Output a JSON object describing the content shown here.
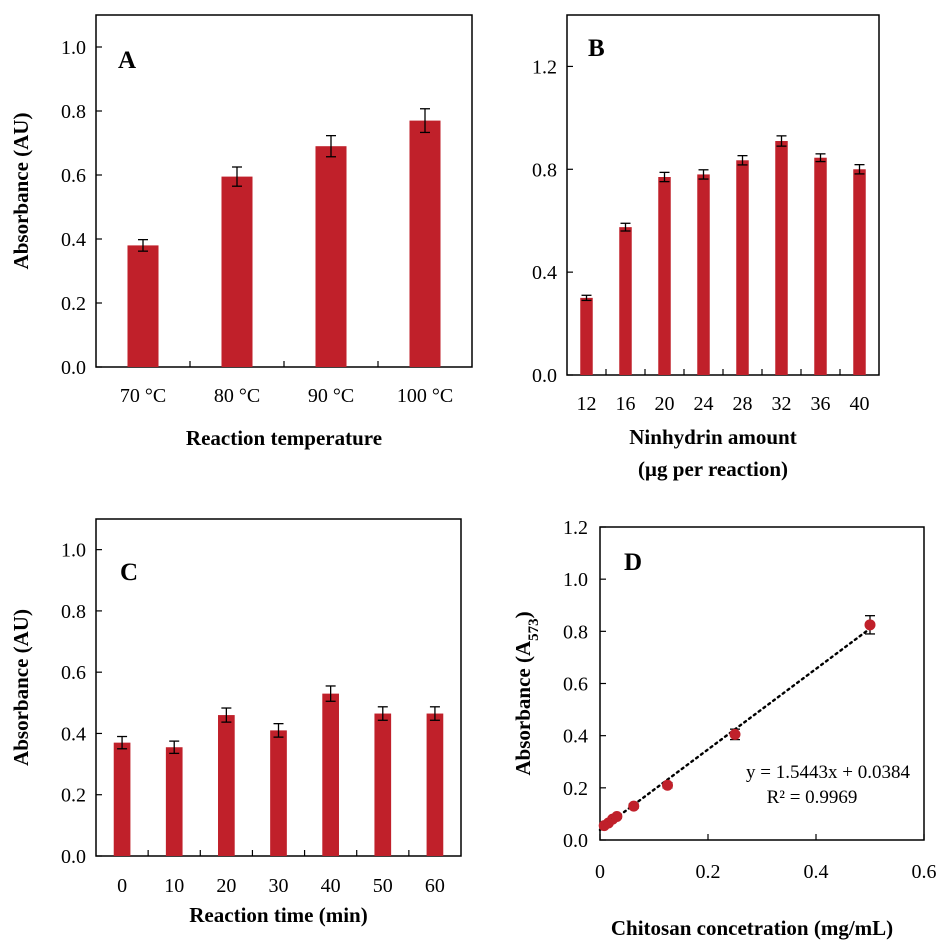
{
  "colors": {
    "bar": "#C0202A",
    "axis": "#000000",
    "trendline": "#000000"
  },
  "chart_data": [
    {
      "panel": "A",
      "type": "bar",
      "xlabel": "Reaction temperature",
      "ylabel": "Absorbance (AU)",
      "categories": [
        "70 °C",
        "80 °C",
        "90 °C",
        "100 °C"
      ],
      "values": [
        0.38,
        0.595,
        0.69,
        0.77
      ],
      "errors": [
        0.018,
        0.03,
        0.033,
        0.037
      ],
      "ylim": [
        0,
        1.1
      ],
      "yticks": [
        "0.0",
        "0.2",
        "0.4",
        "0.6",
        "0.8",
        "1.0"
      ],
      "grid": false
    },
    {
      "panel": "B",
      "type": "bar",
      "xlabel": "Ninhydrin  amount",
      "xlabel2": "(µg per reaction)",
      "ylabel": "",
      "categories": [
        "12",
        "16",
        "20",
        "24",
        "28",
        "32",
        "36",
        "40"
      ],
      "values": [
        0.3,
        0.575,
        0.77,
        0.78,
        0.835,
        0.91,
        0.845,
        0.8
      ],
      "errors": [
        0.01,
        0.015,
        0.018,
        0.018,
        0.018,
        0.02,
        0.015,
        0.018
      ],
      "ylim": [
        0,
        1.4
      ],
      "yticks": [
        "0.0",
        "0.4",
        "0.8",
        "1.2"
      ],
      "grid": false
    },
    {
      "panel": "C",
      "type": "bar",
      "xlabel": "Reaction time (min)",
      "ylabel": "Absorbance (AU)",
      "categories": [
        "0",
        "10",
        "20",
        "30",
        "40",
        "50",
        "60"
      ],
      "values": [
        0.37,
        0.355,
        0.46,
        0.41,
        0.53,
        0.465,
        0.465
      ],
      "errors": [
        0.02,
        0.02,
        0.023,
        0.022,
        0.025,
        0.022,
        0.022
      ],
      "ylim": [
        0,
        1.1
      ],
      "yticks": [
        "0.0",
        "0.2",
        "0.4",
        "0.6",
        "0.8",
        "1.0"
      ],
      "grid": false
    },
    {
      "panel": "D",
      "type": "scatter",
      "xlabel": "Chitosan concetration (mg/mL)",
      "ylabel": "Absorbance (A",
      "ylabel_sub": "573",
      "ylabel_end": ")",
      "x": [
        0.0078,
        0.0156,
        0.0234,
        0.03125,
        0.0625,
        0.125,
        0.25,
        0.5
      ],
      "y": [
        0.055,
        0.065,
        0.08,
        0.09,
        0.13,
        0.21,
        0.405,
        0.825
      ],
      "errors": [
        0.005,
        0.005,
        0.006,
        0.007,
        0.008,
        0.01,
        0.02,
        0.035
      ],
      "xlim": [
        0,
        0.6
      ],
      "ylim": [
        0,
        1.2
      ],
      "xticks": [
        "0",
        "0.2",
        "0.4",
        "0.6"
      ],
      "yticks": [
        "0.0",
        "0.2",
        "0.4",
        "0.6",
        "0.8",
        "1.0",
        "1.2"
      ],
      "trendline": {
        "slope": 1.5443,
        "intercept": 0.0384
      },
      "equation": "y = 1.5443x + 0.0384",
      "r2": "R² = 0.9969",
      "grid": false
    }
  ]
}
